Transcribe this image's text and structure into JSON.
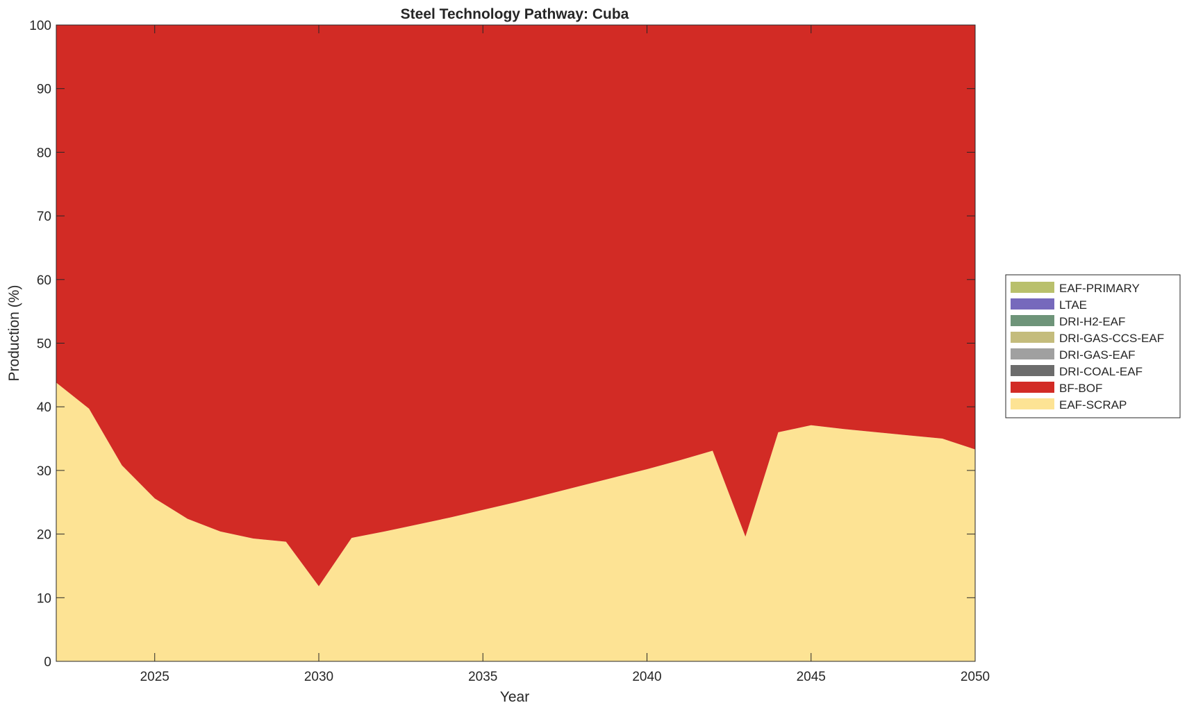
{
  "chart_data": {
    "type": "area",
    "stacked": true,
    "title": "Steel Technology Pathway: Cuba",
    "xlabel": "Year",
    "ylabel": "Production (%)",
    "xlim": [
      2022,
      2050
    ],
    "ylim": [
      0,
      100
    ],
    "xticks": [
      2025,
      2030,
      2035,
      2040,
      2045,
      2050
    ],
    "yticks": [
      0,
      10,
      20,
      30,
      40,
      50,
      60,
      70,
      80,
      90,
      100
    ],
    "grid": false,
    "legend_position": "right",
    "x": [
      2022,
      2023,
      2024,
      2025,
      2026,
      2027,
      2028,
      2029,
      2030,
      2031,
      2032,
      2033,
      2034,
      2035,
      2036,
      2037,
      2038,
      2039,
      2040,
      2041,
      2042,
      2043,
      2044,
      2045,
      2046,
      2047,
      2048,
      2049,
      2050
    ],
    "series": [
      {
        "name": "EAF-SCRAP",
        "color": "#fde394",
        "values": [
          43.8,
          39.7,
          30.8,
          25.6,
          22.4,
          20.4,
          19.3,
          18.8,
          11.8,
          19.4,
          20.4,
          21.5,
          22.6,
          23.8,
          25.0,
          26.3,
          27.6,
          28.9,
          30.2,
          31.6,
          33.1,
          19.6,
          36.0,
          37.1,
          36.5,
          36.0,
          35.5,
          35.0,
          33.3
        ]
      },
      {
        "name": "BF-BOF",
        "color": "#d22b25",
        "values": [
          56.2,
          60.3,
          69.2,
          74.4,
          77.6,
          79.6,
          80.7,
          81.2,
          88.2,
          80.6,
          79.6,
          78.5,
          77.4,
          76.2,
          75.0,
          73.7,
          72.4,
          71.1,
          69.8,
          68.4,
          66.9,
          80.4,
          64.0,
          62.9,
          63.5,
          64.0,
          64.5,
          65.0,
          66.7
        ]
      },
      {
        "name": "DRI-COAL-EAF",
        "color": "#6c6c6c",
        "values": [
          0,
          0,
          0,
          0,
          0,
          0,
          0,
          0,
          0,
          0,
          0,
          0,
          0,
          0,
          0,
          0,
          0,
          0,
          0,
          0,
          0,
          0,
          0,
          0,
          0,
          0,
          0,
          0,
          0
        ]
      },
      {
        "name": "DRI-GAS-EAF",
        "color": "#a0a0a0",
        "values": [
          0,
          0,
          0,
          0,
          0,
          0,
          0,
          0,
          0,
          0,
          0,
          0,
          0,
          0,
          0,
          0,
          0,
          0,
          0,
          0,
          0,
          0,
          0,
          0,
          0,
          0,
          0,
          0,
          0
        ]
      },
      {
        "name": "DRI-GAS-CCS-EAF",
        "color": "#c4bc7c",
        "values": [
          0,
          0,
          0,
          0,
          0,
          0,
          0,
          0,
          0,
          0,
          0,
          0,
          0,
          0,
          0,
          0,
          0,
          0,
          0,
          0,
          0,
          0,
          0,
          0,
          0,
          0,
          0,
          0,
          0
        ]
      },
      {
        "name": "DRI-H2-EAF",
        "color": "#6e9479",
        "values": [
          0,
          0,
          0,
          0,
          0,
          0,
          0,
          0,
          0,
          0,
          0,
          0,
          0,
          0,
          0,
          0,
          0,
          0,
          0,
          0,
          0,
          0,
          0,
          0,
          0,
          0,
          0,
          0,
          0
        ]
      },
      {
        "name": "LTAE",
        "color": "#7669bc",
        "values": [
          0,
          0,
          0,
          0,
          0,
          0,
          0,
          0,
          0,
          0,
          0,
          0,
          0,
          0,
          0,
          0,
          0,
          0,
          0,
          0,
          0,
          0,
          0,
          0,
          0,
          0,
          0,
          0,
          0
        ]
      },
      {
        "name": "EAF-PRIMARY",
        "color": "#b9c06c",
        "values": [
          0,
          0,
          0,
          0,
          0,
          0,
          0,
          0,
          0,
          0,
          0,
          0,
          0,
          0,
          0,
          0,
          0,
          0,
          0,
          0,
          0,
          0,
          0,
          0,
          0,
          0,
          0,
          0,
          0
        ]
      }
    ],
    "legend_order": [
      "EAF-PRIMARY",
      "LTAE",
      "DRI-H2-EAF",
      "DRI-GAS-CCS-EAF",
      "DRI-GAS-EAF",
      "DRI-COAL-EAF",
      "BF-BOF",
      "EAF-SCRAP"
    ]
  }
}
